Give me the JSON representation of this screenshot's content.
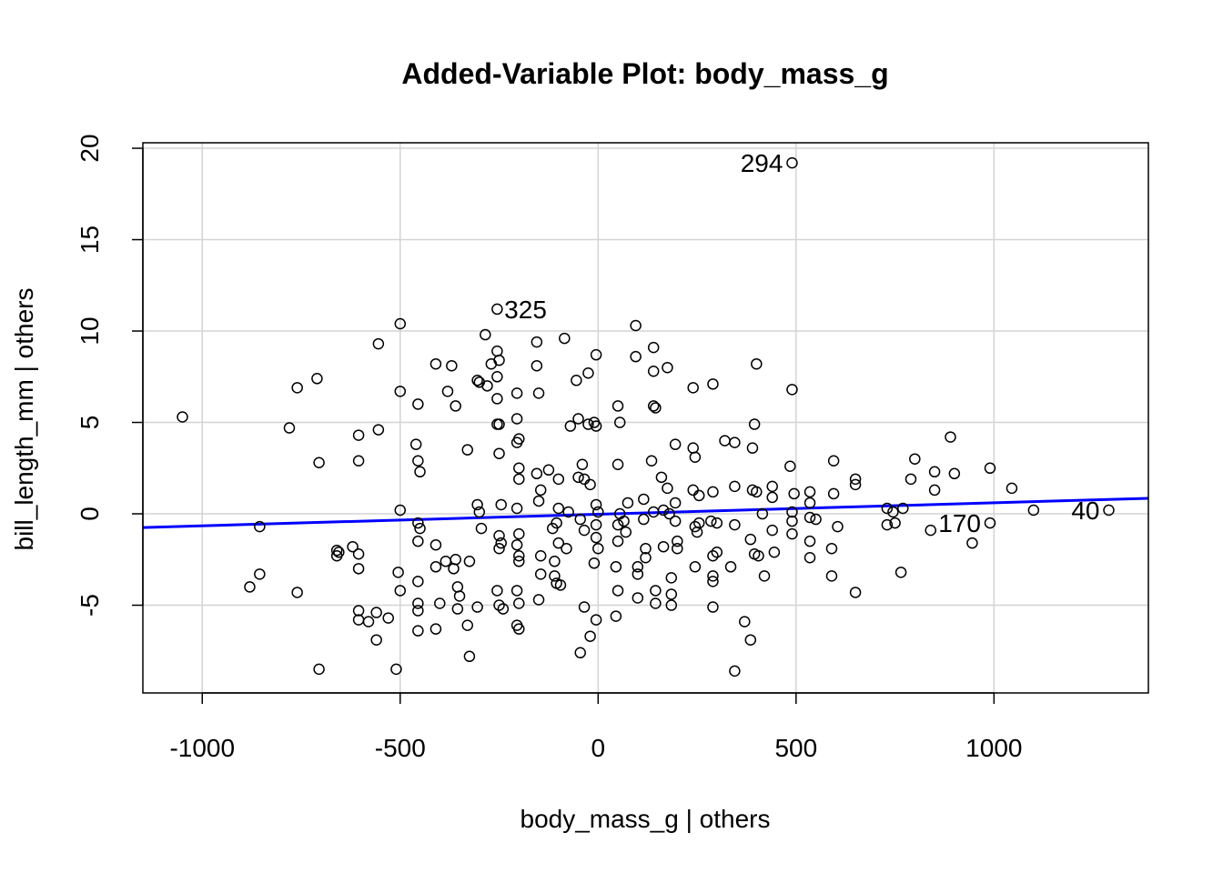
{
  "chart_data": {
    "type": "scatter",
    "title": "Added-Variable Plot: body_mass_g",
    "xlabel": "body_mass_g | others",
    "ylabel": "bill_length_mm  | others",
    "xlim": [
      -1150,
      1390
    ],
    "ylim": [
      -9.8,
      20.3
    ],
    "xticks": [
      -1000,
      -500,
      0,
      500,
      1000
    ],
    "yticks": [
      -5,
      0,
      5,
      10,
      15,
      20
    ],
    "grid": true,
    "colors": {
      "points": "#000000",
      "fit_line": "#0000ff",
      "grid": "#d3d3d3"
    },
    "fit_line": {
      "x": [
        -1150,
        1390
      ],
      "y": [
        -0.75,
        0.85
      ]
    },
    "labeled_points": [
      {
        "label": "294",
        "x": 490,
        "y": 19.2
      },
      {
        "label": "325",
        "x": -260,
        "y": 11.2
      },
      {
        "label": "170",
        "x": 990,
        "y": -0.5
      },
      {
        "label": "40",
        "x": 1290,
        "y": 0.2
      }
    ],
    "points": [
      [
        -1050,
        5.3
      ],
      [
        -880,
        -4.0
      ],
      [
        -855,
        -3.3
      ],
      [
        -855,
        -0.7
      ],
      [
        -780,
        4.7
      ],
      [
        -760,
        6.9
      ],
      [
        -760,
        -4.3
      ],
      [
        -710,
        7.4
      ],
      [
        -705,
        2.8
      ],
      [
        -705,
        -8.5
      ],
      [
        -660,
        -2.0
      ],
      [
        -660,
        -2.3
      ],
      [
        -655,
        -2.1
      ],
      [
        -620,
        -1.8
      ],
      [
        -605,
        4.3
      ],
      [
        -605,
        2.9
      ],
      [
        -605,
        -2.2
      ],
      [
        -605,
        -3.0
      ],
      [
        -605,
        -5.3
      ],
      [
        -605,
        -5.8
      ],
      [
        -580,
        -5.9
      ],
      [
        -560,
        -5.4
      ],
      [
        -560,
        -6.9
      ],
      [
        -555,
        9.3
      ],
      [
        -555,
        4.6
      ],
      [
        -530,
        -5.7
      ],
      [
        -510,
        -8.5
      ],
      [
        -505,
        -3.2
      ],
      [
        -500,
        10.4
      ],
      [
        -500,
        6.7
      ],
      [
        -500,
        0.2
      ],
      [
        -500,
        -4.2
      ],
      [
        -455,
        6.0
      ],
      [
        -460,
        3.8
      ],
      [
        -455,
        2.9
      ],
      [
        -450,
        2.3
      ],
      [
        -455,
        -0.5
      ],
      [
        -450,
        -0.8
      ],
      [
        -455,
        -1.5
      ],
      [
        -455,
        -3.7
      ],
      [
        -455,
        -4.9
      ],
      [
        -455,
        -5.3
      ],
      [
        -455,
        -6.4
      ],
      [
        -410,
        8.2
      ],
      [
        -410,
        -1.7
      ],
      [
        -410,
        -2.9
      ],
      [
        -400,
        -4.9
      ],
      [
        -410,
        -6.3
      ],
      [
        -380,
        6.7
      ],
      [
        -385,
        -2.6
      ],
      [
        -370,
        8.1
      ],
      [
        -360,
        5.9
      ],
      [
        -360,
        -2.5
      ],
      [
        -365,
        -3.0
      ],
      [
        -355,
        -4.0
      ],
      [
        -350,
        -4.5
      ],
      [
        -355,
        -5.2
      ],
      [
        -330,
        3.5
      ],
      [
        -325,
        -2.6
      ],
      [
        -330,
        -6.1
      ],
      [
        -325,
        -7.8
      ],
      [
        -305,
        7.3
      ],
      [
        -300,
        7.2
      ],
      [
        -305,
        0.5
      ],
      [
        -300,
        0.1
      ],
      [
        -295,
        -0.8
      ],
      [
        -305,
        -5.1
      ],
      [
        -285,
        9.8
      ],
      [
        -270,
        8.2
      ],
      [
        -280,
        7.0
      ],
      [
        -255,
        11.2
      ],
      [
        -255,
        8.9
      ],
      [
        -250,
        8.4
      ],
      [
        -255,
        7.5
      ],
      [
        -255,
        6.3
      ],
      [
        -255,
        4.9
      ],
      [
        -250,
        4.9
      ],
      [
        -250,
        3.3
      ],
      [
        -245,
        0.5
      ],
      [
        -250,
        -1.2
      ],
      [
        -245,
        -1.6
      ],
      [
        -250,
        -1.9
      ],
      [
        -255,
        -4.2
      ],
      [
        -250,
        -5.0
      ],
      [
        -240,
        -5.2
      ],
      [
        -205,
        6.6
      ],
      [
        -205,
        5.2
      ],
      [
        -200,
        4.1
      ],
      [
        -205,
        3.9
      ],
      [
        -200,
        2.5
      ],
      [
        -200,
        1.9
      ],
      [
        -205,
        0.3
      ],
      [
        -200,
        -1.1
      ],
      [
        -205,
        -1.7
      ],
      [
        -200,
        -2.3
      ],
      [
        -200,
        -2.6
      ],
      [
        -205,
        -4.2
      ],
      [
        -200,
        -4.9
      ],
      [
        -205,
        -6.1
      ],
      [
        -200,
        -6.3
      ],
      [
        -155,
        9.4
      ],
      [
        -155,
        8.1
      ],
      [
        -150,
        6.6
      ],
      [
        -155,
        2.2
      ],
      [
        -145,
        1.3
      ],
      [
        -150,
        0.7
      ],
      [
        -145,
        -2.3
      ],
      [
        -145,
        -3.3
      ],
      [
        -150,
        -4.7
      ],
      [
        -125,
        2.4
      ],
      [
        -115,
        -0.8
      ],
      [
        -110,
        -2.6
      ],
      [
        -110,
        -3.4
      ],
      [
        -105,
        -3.8
      ],
      [
        -100,
        1.9
      ],
      [
        -100,
        0.3
      ],
      [
        -105,
        -0.5
      ],
      [
        -100,
        -1.6
      ],
      [
        -95,
        -3.9
      ],
      [
        -85,
        9.6
      ],
      [
        -80,
        -1.9
      ],
      [
        -75,
        0.1
      ],
      [
        -70,
        4.8
      ],
      [
        -55,
        7.3
      ],
      [
        -50,
        5.2
      ],
      [
        -50,
        2.0
      ],
      [
        -45,
        -0.3
      ],
      [
        -45,
        -7.6
      ],
      [
        -40,
        2.7
      ],
      [
        -35,
        1.9
      ],
      [
        -35,
        -0.9
      ],
      [
        -35,
        -5.1
      ],
      [
        -25,
        7.7
      ],
      [
        -25,
        4.9
      ],
      [
        -20,
        1.6
      ],
      [
        -20,
        -6.7
      ],
      [
        -10,
        5.0
      ],
      [
        -5,
        8.7
      ],
      [
        -5,
        4.8
      ],
      [
        -5,
        0.5
      ],
      [
        0,
        0.1
      ],
      [
        -5,
        -0.6
      ],
      [
        -5,
        -1.3
      ],
      [
        0,
        -1.9
      ],
      [
        -10,
        -2.7
      ],
      [
        -5,
        -5.8
      ],
      [
        50,
        5.9
      ],
      [
        55,
        5.0
      ],
      [
        50,
        2.7
      ],
      [
        55,
        0.0
      ],
      [
        50,
        -0.6
      ],
      [
        50,
        -1.5
      ],
      [
        45,
        -2.9
      ],
      [
        50,
        -4.2
      ],
      [
        45,
        -5.6
      ],
      [
        65,
        -0.4
      ],
      [
        70,
        -1.0
      ],
      [
        75,
        0.6
      ],
      [
        95,
        10.3
      ],
      [
        95,
        8.6
      ],
      [
        100,
        -2.9
      ],
      [
        100,
        -3.3
      ],
      [
        100,
        -4.6
      ],
      [
        115,
        0.8
      ],
      [
        115,
        -0.3
      ],
      [
        120,
        -1.9
      ],
      [
        120,
        -2.4
      ],
      [
        140,
        9.1
      ],
      [
        140,
        7.8
      ],
      [
        140,
        5.9
      ],
      [
        145,
        5.8
      ],
      [
        135,
        2.9
      ],
      [
        140,
        0.1
      ],
      [
        145,
        -4.2
      ],
      [
        145,
        -4.9
      ],
      [
        160,
        2.0
      ],
      [
        165,
        0.2
      ],
      [
        165,
        -1.8
      ],
      [
        175,
        8.0
      ],
      [
        175,
        1.4
      ],
      [
        180,
        0.0
      ],
      [
        185,
        -3.5
      ],
      [
        185,
        -4.4
      ],
      [
        185,
        -5.0
      ],
      [
        195,
        3.8
      ],
      [
        195,
        0.6
      ],
      [
        195,
        -0.4
      ],
      [
        200,
        -1.5
      ],
      [
        200,
        -1.9
      ],
      [
        240,
        6.9
      ],
      [
        240,
        3.6
      ],
      [
        245,
        3.1
      ],
      [
        240,
        1.3
      ],
      [
        245,
        -0.7
      ],
      [
        250,
        -1.0
      ],
      [
        245,
        -2.9
      ],
      [
        255,
        1.0
      ],
      [
        255,
        -0.5
      ],
      [
        290,
        7.1
      ],
      [
        290,
        1.2
      ],
      [
        285,
        -0.4
      ],
      [
        290,
        -2.3
      ],
      [
        290,
        -3.4
      ],
      [
        290,
        -3.7
      ],
      [
        290,
        -5.1
      ],
      [
        300,
        -0.5
      ],
      [
        300,
        -2.1
      ],
      [
        320,
        4.0
      ],
      [
        345,
        3.9
      ],
      [
        345,
        1.5
      ],
      [
        345,
        -0.6
      ],
      [
        335,
        -2.9
      ],
      [
        345,
        -8.6
      ],
      [
        370,
        -5.9
      ],
      [
        390,
        3.6
      ],
      [
        390,
        1.3
      ],
      [
        385,
        -1.4
      ],
      [
        395,
        -2.2
      ],
      [
        385,
        -6.9
      ],
      [
        395,
        4.9
      ],
      [
        400,
        8.2
      ],
      [
        400,
        1.2
      ],
      [
        415,
        0.0
      ],
      [
        405,
        -2.3
      ],
      [
        420,
        -3.4
      ],
      [
        440,
        1.5
      ],
      [
        440,
        0.9
      ],
      [
        440,
        -0.9
      ],
      [
        445,
        -2.1
      ],
      [
        490,
        19.2
      ],
      [
        490,
        6.8
      ],
      [
        485,
        2.6
      ],
      [
        495,
        1.1
      ],
      [
        490,
        0.1
      ],
      [
        490,
        -0.4
      ],
      [
        490,
        -1.1
      ],
      [
        535,
        1.2
      ],
      [
        535,
        0.6
      ],
      [
        535,
        -0.2
      ],
      [
        535,
        -1.5
      ],
      [
        535,
        -2.4
      ],
      [
        550,
        -0.3
      ],
      [
        595,
        2.9
      ],
      [
        595,
        1.1
      ],
      [
        590,
        -1.9
      ],
      [
        590,
        -3.4
      ],
      [
        605,
        -0.7
      ],
      [
        650,
        1.9
      ],
      [
        650,
        1.6
      ],
      [
        650,
        -4.3
      ],
      [
        730,
        0.3
      ],
      [
        730,
        -0.6
      ],
      [
        745,
        0.1
      ],
      [
        750,
        -0.5
      ],
      [
        765,
        -3.2
      ],
      [
        770,
        0.3
      ],
      [
        790,
        1.9
      ],
      [
        800,
        3.0
      ],
      [
        840,
        -0.9
      ],
      [
        850,
        2.3
      ],
      [
        850,
        1.3
      ],
      [
        890,
        4.2
      ],
      [
        900,
        2.2
      ],
      [
        945,
        -1.6
      ],
      [
        990,
        2.5
      ],
      [
        990,
        -0.5
      ],
      [
        1045,
        1.4
      ],
      [
        1100,
        0.2
      ],
      [
        1290,
        0.2
      ]
    ]
  }
}
